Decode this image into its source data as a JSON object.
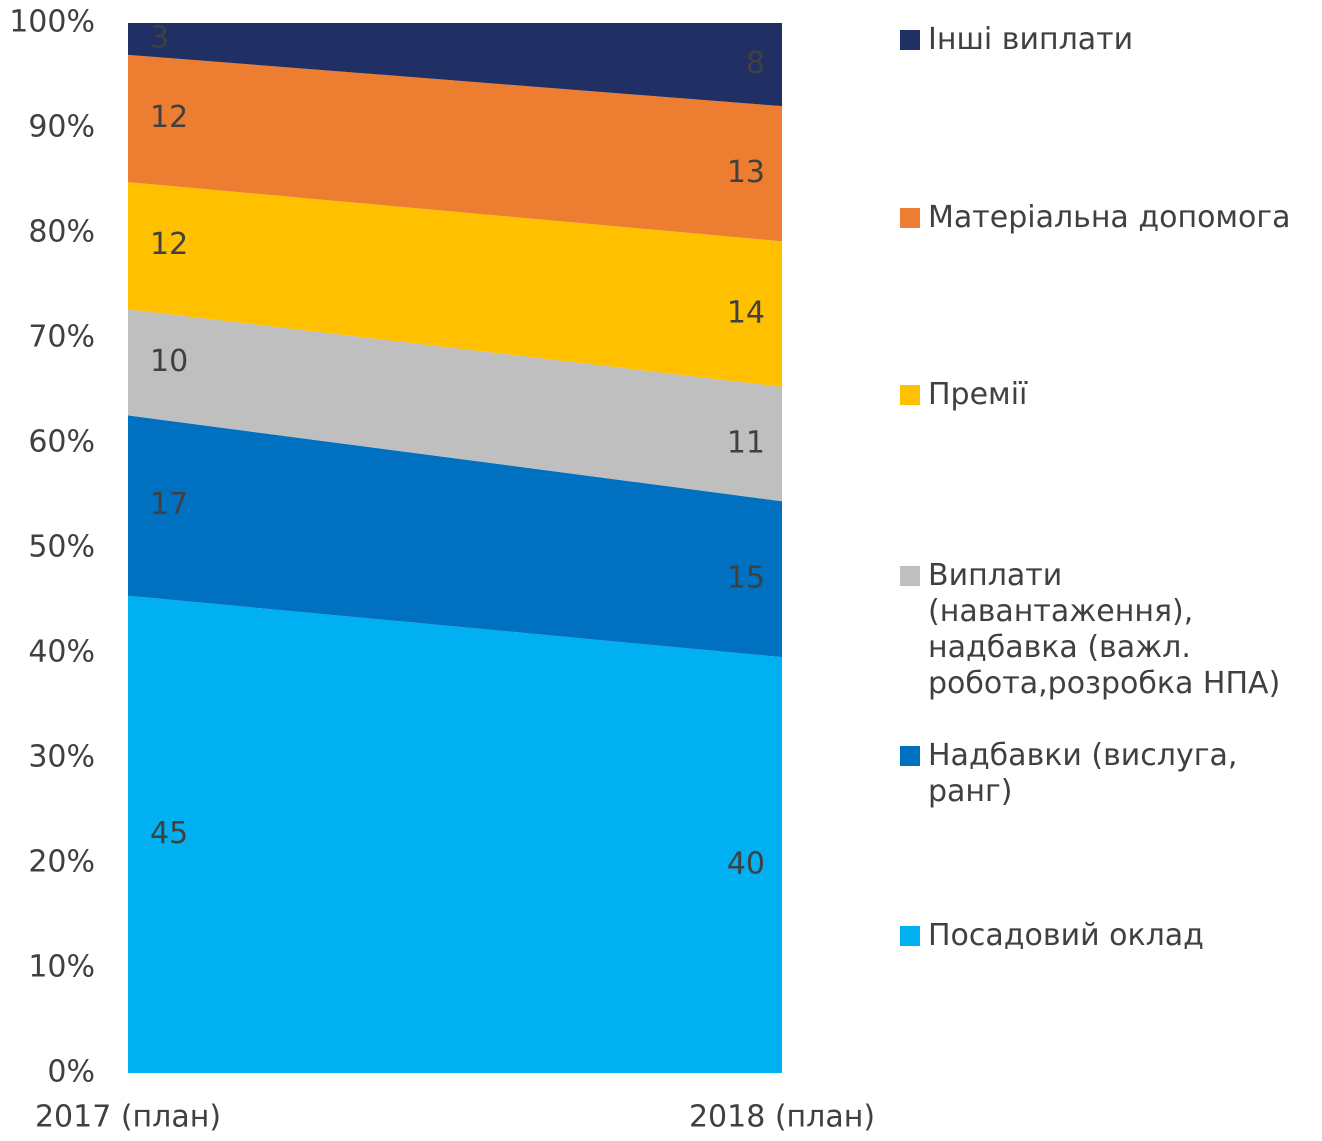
{
  "chart_data": {
    "type": "area",
    "stacking": "percent",
    "categories": [
      "2017 (план)",
      "2018 (план)"
    ],
    "series": [
      {
        "name": "Посадовий оклад",
        "color": "#00b0f0",
        "values": [
          45,
          40
        ]
      },
      {
        "name": "Надбавки (вислуга, ранг)",
        "color": "#0070c0",
        "values": [
          17,
          15
        ]
      },
      {
        "name": "Виплати (навантаження), надбавка (важл. робота,розробка НПА)",
        "color": "#bfbfbf",
        "values": [
          10,
          11
        ]
      },
      {
        "name": "Премії",
        "color": "#ffc000",
        "values": [
          12,
          14
        ]
      },
      {
        "name": "Матеріальна допомога",
        "color": "#ed7d31",
        "values": [
          12,
          13
        ]
      },
      {
        "name": "Інші виплати",
        "color": "#203064",
        "values": [
          3,
          8
        ]
      }
    ],
    "ylim": [
      0,
      100
    ],
    "yticks": [
      {
        "value": 0,
        "label": "0%"
      },
      {
        "value": 10,
        "label": "10%"
      },
      {
        "value": 20,
        "label": "20%"
      },
      {
        "value": 30,
        "label": "30%"
      },
      {
        "value": 40,
        "label": "40%"
      },
      {
        "value": 50,
        "label": "50%"
      },
      {
        "value": 60,
        "label": "60%"
      },
      {
        "value": 70,
        "label": "70%"
      },
      {
        "value": 80,
        "label": "80%"
      },
      {
        "value": 90,
        "label": "90%"
      },
      {
        "value": 100,
        "label": "100%"
      }
    ],
    "legend": "right"
  }
}
